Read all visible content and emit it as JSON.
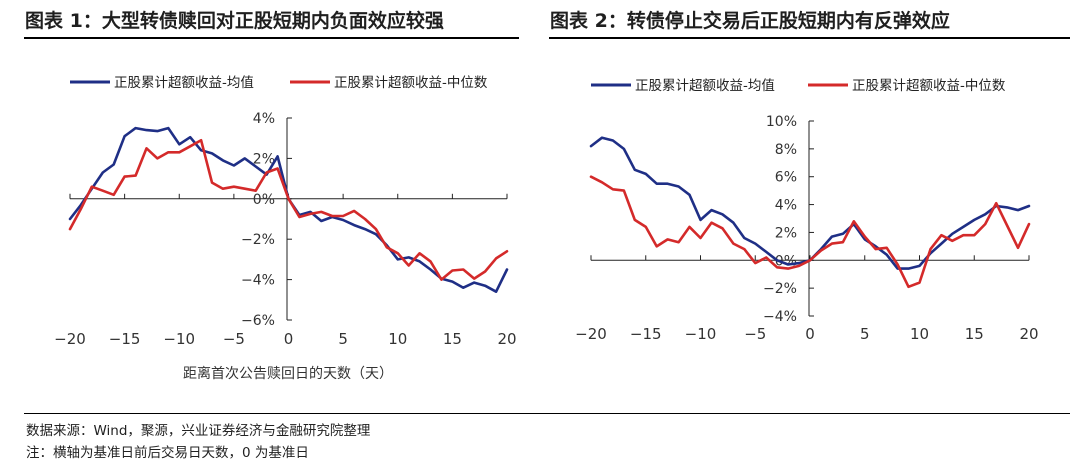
{
  "charts": [
    {
      "title": "图表 1：大型转债赎回对正股短期内负面效应较强",
      "xlabel": "距离首次公告赎回日的天数（天）"
    },
    {
      "title": "图表 2：转债停止交易后正股短期内有反弹效应",
      "xlabel": ""
    }
  ],
  "footer": {
    "source": "数据来源：Wind，聚源，兴业证券经济与金融研究院整理",
    "note": "注：横轴为基准日前后交易日天数，0 为基准日"
  },
  "colors": {
    "mean": "#1f2f86",
    "median": "#d42a2a"
  },
  "chart_data": [
    {
      "type": "line",
      "title": "图表 1：大型转债赎回对正股短期内负面效应较强",
      "xlabel": "距离首次公告赎回日的天数（天）",
      "ylabel": "",
      "xlim": [
        -20,
        20
      ],
      "ylim": [
        -6,
        4
      ],
      "x_ticks": [
        -20,
        -15,
        -10,
        -5,
        0,
        5,
        10,
        15,
        20
      ],
      "x_tick_labels": [
        "−20",
        "−15",
        "−10",
        "−5",
        "0",
        "5",
        "10",
        "15",
        "20"
      ],
      "y_ticks": [
        -6,
        -4,
        -2,
        0,
        2,
        4
      ],
      "y_tick_labels": [
        "−6%",
        "−4%",
        "−2%",
        "0%",
        "2%",
        "4%"
      ],
      "legend": "top",
      "x": [
        -20,
        -19,
        -18,
        -17,
        -16,
        -15,
        -14,
        -13,
        -12,
        -11,
        -10,
        -9,
        -8,
        -7,
        -6,
        -5,
        -4,
        -3,
        -2,
        -1,
        0,
        1,
        2,
        3,
        4,
        5,
        6,
        7,
        8,
        9,
        10,
        11,
        12,
        13,
        14,
        15,
        16,
        17,
        18,
        19,
        20
      ],
      "series": [
        {
          "name": "正股累计超额收益-均值",
          "color": "#1f2f86",
          "values": [
            -1.0,
            -0.3,
            0.5,
            1.3,
            1.7,
            3.1,
            3.5,
            3.4,
            3.35,
            3.5,
            2.7,
            3.05,
            2.4,
            2.25,
            1.9,
            1.65,
            2.0,
            1.6,
            1.2,
            2.1,
            0.0,
            -0.8,
            -0.65,
            -1.1,
            -0.9,
            -1.05,
            -1.3,
            -1.5,
            -1.75,
            -2.3,
            -3.0,
            -2.9,
            -3.1,
            -3.5,
            -3.95,
            -4.1,
            -4.4,
            -4.15,
            -4.3,
            -4.6,
            -3.5
          ]
        },
        {
          "name": "正股累计超额收益-中位数",
          "color": "#d42a2a",
          "values": [
            -1.5,
            -0.5,
            0.6,
            0.4,
            0.2,
            1.1,
            1.15,
            2.5,
            2.0,
            2.3,
            2.3,
            2.6,
            2.9,
            0.8,
            0.5,
            0.6,
            0.5,
            0.4,
            1.3,
            1.5,
            0.0,
            -0.9,
            -0.75,
            -0.65,
            -0.85,
            -0.85,
            -0.6,
            -1.0,
            -1.5,
            -2.4,
            -2.7,
            -3.3,
            -2.7,
            -3.1,
            -4.0,
            -3.55,
            -3.5,
            -3.95,
            -3.6,
            -2.95,
            -2.6
          ]
        }
      ]
    },
    {
      "type": "line",
      "title": "图表 2：转债停止交易后正股短期内有反弹效应",
      "xlabel": "",
      "ylabel": "",
      "xlim": [
        -20,
        20
      ],
      "ylim": [
        -4,
        10
      ],
      "x_ticks": [
        -20,
        -15,
        -10,
        -5,
        0,
        5,
        10,
        15,
        20
      ],
      "x_tick_labels": [
        "−20",
        "−15",
        "−10",
        "−5",
        "0",
        "5",
        "10",
        "15",
        "20"
      ],
      "y_ticks": [
        -4,
        -2,
        0,
        2,
        4,
        6,
        8,
        10
      ],
      "y_tick_labels": [
        "−4%",
        "−2%",
        "0%",
        "2%",
        "4%",
        "6%",
        "8%",
        "10%"
      ],
      "legend": "top",
      "x": [
        -20,
        -19,
        -18,
        -17,
        -16,
        -15,
        -14,
        -13,
        -12,
        -11,
        -10,
        -9,
        -8,
        -7,
        -6,
        -5,
        -4,
        -3,
        -2,
        -1,
        0,
        1,
        2,
        3,
        4,
        5,
        6,
        7,
        8,
        9,
        10,
        11,
        12,
        13,
        14,
        15,
        16,
        17,
        18,
        19,
        20
      ],
      "series": [
        {
          "name": "正股累计超额收益-均值",
          "color": "#1f2f86",
          "values": [
            8.2,
            8.8,
            8.6,
            8.0,
            6.5,
            6.2,
            5.5,
            5.5,
            5.3,
            4.7,
            2.9,
            3.6,
            3.3,
            2.7,
            1.6,
            1.2,
            0.6,
            0.0,
            -0.3,
            -0.2,
            0.0,
            0.8,
            1.7,
            1.9,
            2.6,
            1.5,
            1.0,
            0.4,
            -0.6,
            -0.6,
            -0.4,
            0.5,
            1.2,
            1.9,
            2.4,
            2.9,
            3.3,
            3.9,
            3.8,
            3.6,
            3.9
          ]
        },
        {
          "name": "正股累计超额收益-中位数",
          "color": "#d42a2a",
          "values": [
            6.0,
            5.6,
            5.1,
            5.0,
            2.9,
            2.4,
            1.0,
            1.5,
            1.3,
            2.4,
            1.6,
            2.7,
            2.3,
            1.2,
            0.8,
            -0.2,
            0.2,
            -0.5,
            -0.6,
            -0.4,
            0.0,
            0.7,
            1.2,
            1.3,
            2.8,
            1.7,
            0.8,
            0.9,
            -0.3,
            -1.9,
            -1.6,
            0.8,
            1.8,
            1.4,
            1.8,
            1.8,
            2.6,
            4.1,
            2.5,
            0.9,
            2.6
          ]
        }
      ]
    }
  ]
}
